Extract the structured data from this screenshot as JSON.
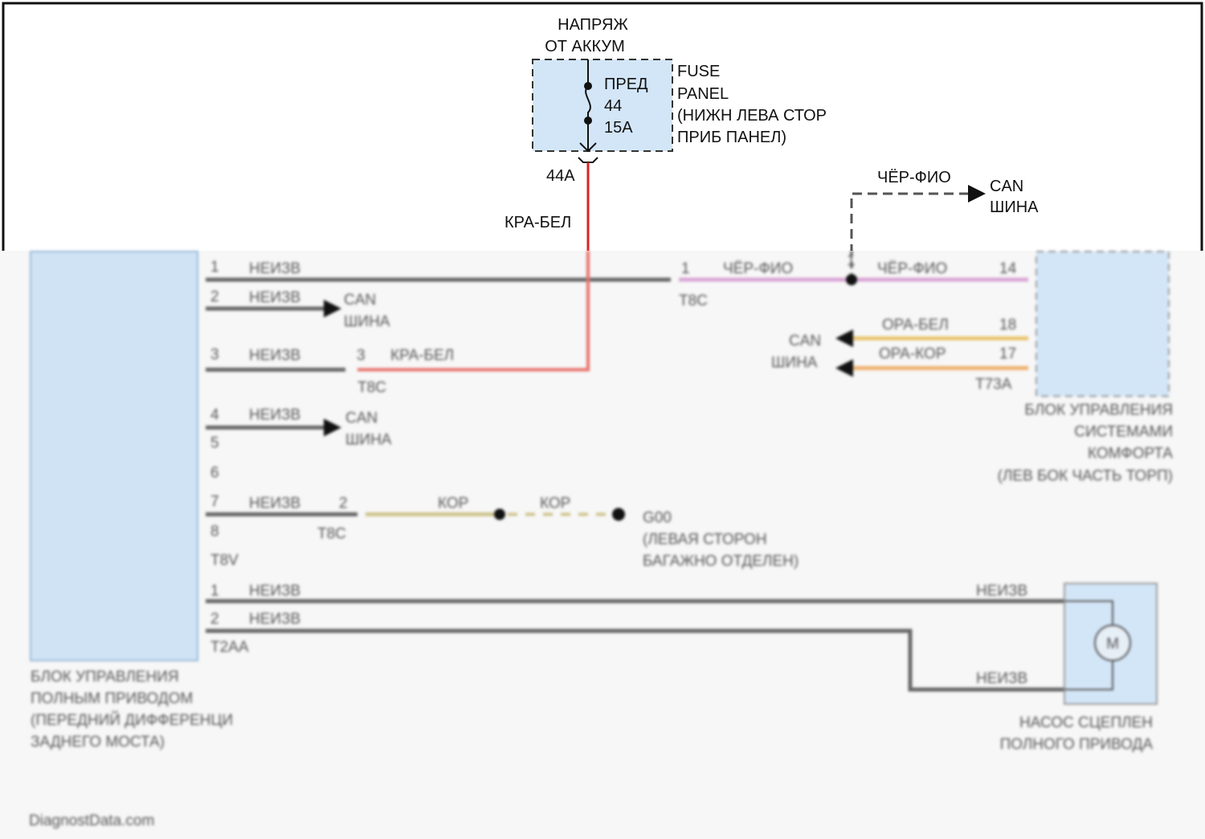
{
  "top": {
    "source_label": [
      "НАПРЯЖ",
      "ОТ АККУМ"
    ],
    "fuse": {
      "name": "ПРЕД",
      "number": "44",
      "rating": "15A"
    },
    "fuse_panel_label": [
      "FUSE",
      "PANEL",
      "(НИЖН ЛЕВА СТОР",
      "ПРИБ ПАНЕЛ)"
    ],
    "fuse_pin": "44A",
    "red_wire_color": "КРА-БЕЛ",
    "can_branch_wire": "ЧЁР-ФИО",
    "can_bus_label": [
      "CAN",
      "ШИНА"
    ]
  },
  "left_module": {
    "label": [
      "БЛОК УПРАВЛЕНИЯ",
      "ПОЛНЫМ ПРИВОДОМ",
      "(ПЕРЕДНИЙ ДИФФЕРЕНЦИ",
      "ЗАДНЕГО МОСТА)"
    ],
    "connector_a": "T8V",
    "connector_b": "T2AA",
    "pins_a": [
      "1",
      "2",
      "3",
      "4",
      "5",
      "6",
      "7",
      "8"
    ],
    "pins_b": [
      "1",
      "2"
    ],
    "wire_unknown": "НЕИЗВ"
  },
  "connections": {
    "can_bus": [
      "CAN",
      "ШИНА"
    ],
    "inline_connector": "T8C",
    "pin1_far": "1",
    "pin1_far_wire": "ЧЁР-ФИО",
    "splice_pin": "1",
    "pin3_far": "3",
    "pin3_far_wire": "КРА-БЕЛ",
    "pin7_far": "2",
    "ground_wire": "КОР",
    "ground_label": [
      "G00",
      "(ЛЕВАЯ СТОРОН",
      "БАГАЖНО ОТДЕЛЕН)"
    ]
  },
  "right_module": {
    "label": [
      "БЛОК УПРАВЛЕНИЯ",
      "СИСТЕМАМИ",
      "КОМФОРТА",
      "(ЛЕВ БОК ЧАСТЬ ТОРП)"
    ],
    "connector": "T73A",
    "pins": [
      "14",
      "18",
      "17"
    ],
    "wires": [
      "ЧЁР-ФИО",
      "ОРА-БЕЛ",
      "ОРА-КОР"
    ],
    "can_bus": [
      "CAN",
      "ШИНА"
    ]
  },
  "pump": {
    "label": [
      "НАСОС СЦЕПЛЕН",
      "ПОЛНОГО ПРИВОДА"
    ],
    "motor_symbol": "M",
    "wire_unknown": "НЕИЗВ"
  },
  "watermark": "DiagnostData.com",
  "colors": {
    "module_fill": "#d3e6f8",
    "wire_gray": "#6b6b6b",
    "wire_red": "#e0403a",
    "wire_pink": "#d9a6d6",
    "wire_orange_white": "#e8c46e",
    "wire_orange_brown": "#f0b070",
    "wire_brown": "#cfc48e"
  }
}
